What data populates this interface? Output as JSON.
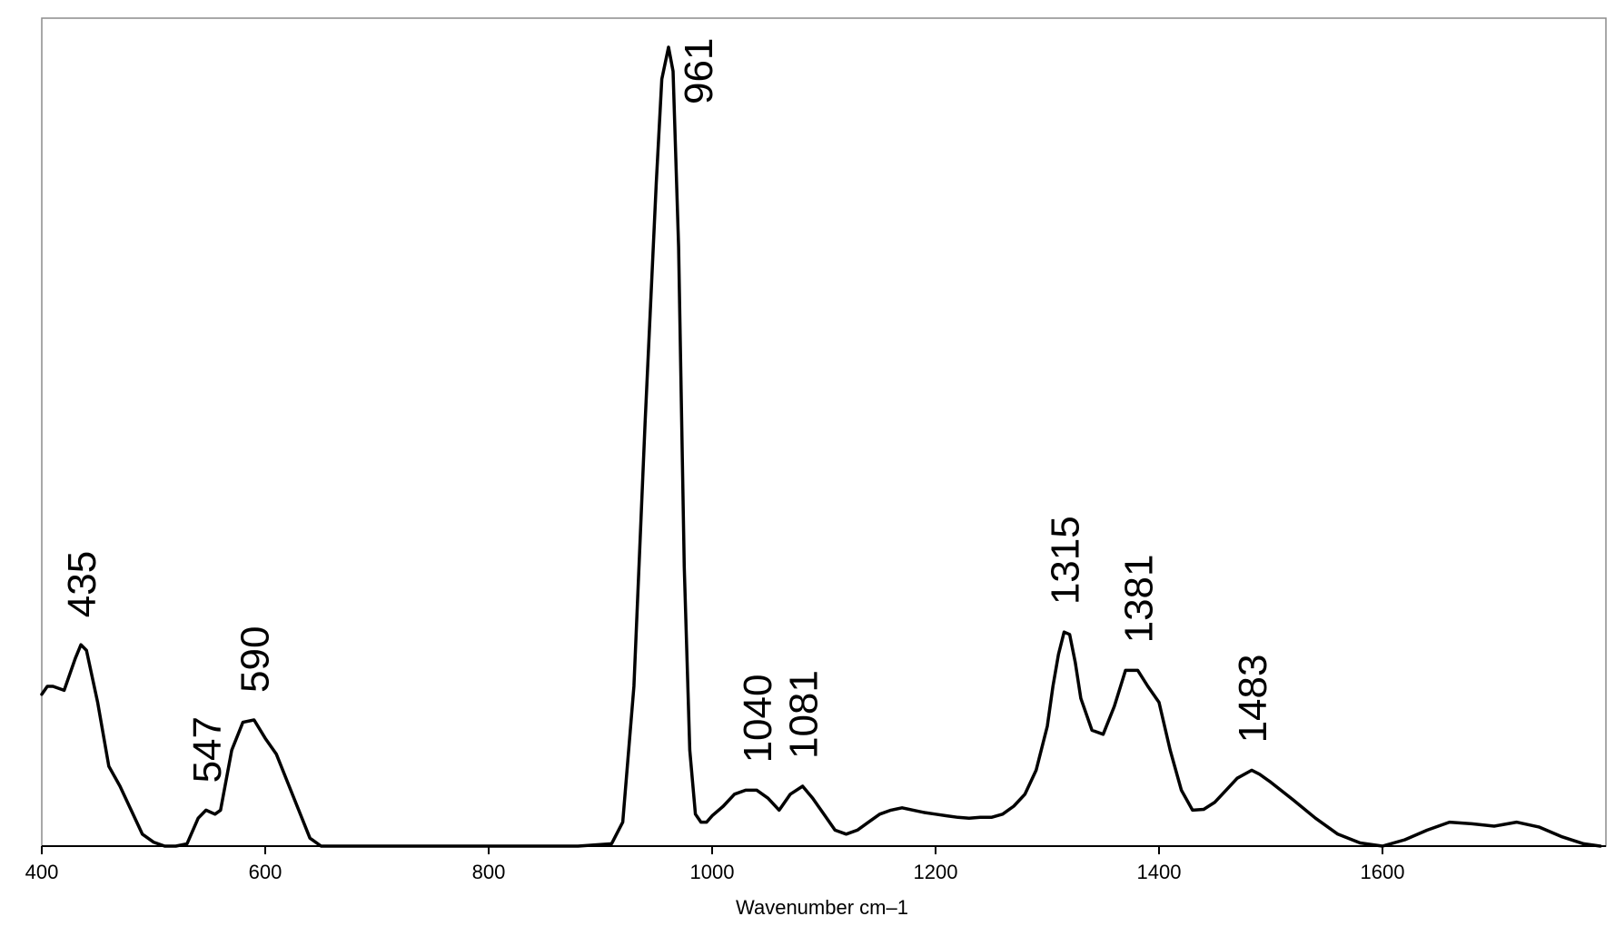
{
  "chart_data": {
    "type": "line",
    "title": "",
    "xlabel": "Wavenumber cm–1",
    "ylabel": "",
    "xlim": [
      400,
      1800
    ],
    "ylim": [
      0,
      1
    ],
    "grid": false,
    "x_ticks": [
      400,
      600,
      800,
      1000,
      1200,
      1400,
      1600
    ],
    "x_tick_labels": [
      "400",
      "600",
      "800",
      "1000",
      "1200",
      "1400",
      "1600"
    ],
    "series": [
      {
        "x": [
          400,
          405,
          410,
          420,
          430,
          435,
          440,
          450,
          460,
          470,
          480,
          490,
          500,
          510,
          520,
          530,
          540,
          547,
          555,
          560,
          570,
          580,
          590,
          600,
          610,
          620,
          630,
          640,
          650,
          660,
          700,
          800,
          880,
          910,
          920,
          930,
          940,
          950,
          955,
          961,
          965,
          970,
          975,
          980,
          985,
          990,
          995,
          1000,
          1010,
          1020,
          1030,
          1040,
          1050,
          1060,
          1070,
          1081,
          1090,
          1100,
          1110,
          1120,
          1130,
          1140,
          1150,
          1160,
          1170,
          1180,
          1190,
          1200,
          1210,
          1220,
          1230,
          1240,
          1250,
          1260,
          1270,
          1280,
          1290,
          1300,
          1305,
          1310,
          1315,
          1320,
          1325,
          1330,
          1340,
          1350,
          1360,
          1370,
          1381,
          1390,
          1400,
          1410,
          1420,
          1430,
          1440,
          1450,
          1460,
          1470,
          1483,
          1490,
          1500,
          1520,
          1540,
          1560,
          1580,
          1600,
          1620,
          1640,
          1660,
          1680,
          1700,
          1720,
          1740,
          1760,
          1780,
          1795
        ],
        "y": [
          0.19,
          0.2,
          0.2,
          0.195,
          0.235,
          0.252,
          0.245,
          0.18,
          0.1,
          0.075,
          0.045,
          0.015,
          0.005,
          0.0,
          0.0,
          0.003,
          0.035,
          0.045,
          0.04,
          0.045,
          0.12,
          0.155,
          0.158,
          0.135,
          0.115,
          0.08,
          0.045,
          0.01,
          0.0,
          0.0,
          0.0,
          0.0,
          0.0,
          0.003,
          0.03,
          0.2,
          0.53,
          0.83,
          0.96,
          1.0,
          0.97,
          0.75,
          0.35,
          0.12,
          0.04,
          0.03,
          0.03,
          0.038,
          0.05,
          0.065,
          0.07,
          0.07,
          0.06,
          0.045,
          0.065,
          0.075,
          0.06,
          0.04,
          0.02,
          0.015,
          0.02,
          0.03,
          0.04,
          0.045,
          0.048,
          0.045,
          0.042,
          0.04,
          0.038,
          0.036,
          0.035,
          0.036,
          0.036,
          0.04,
          0.05,
          0.065,
          0.095,
          0.15,
          0.2,
          0.24,
          0.268,
          0.265,
          0.23,
          0.185,
          0.145,
          0.14,
          0.175,
          0.22,
          0.22,
          0.2,
          0.18,
          0.12,
          0.07,
          0.045,
          0.046,
          0.055,
          0.07,
          0.085,
          0.095,
          0.09,
          0.08,
          0.058,
          0.035,
          0.015,
          0.004,
          0.0,
          0.008,
          0.02,
          0.03,
          0.028,
          0.025,
          0.03,
          0.024,
          0.012,
          0.003,
          0.0
        ]
      }
    ],
    "annotations": [
      {
        "x": 435,
        "text": "435"
      },
      {
        "x": 547,
        "text": "547"
      },
      {
        "x": 590,
        "text": "590"
      },
      {
        "x": 961,
        "text": "961"
      },
      {
        "x": 1040,
        "text": "1040"
      },
      {
        "x": 1081,
        "text": "1081"
      },
      {
        "x": 1315,
        "text": "1315"
      },
      {
        "x": 1381,
        "text": "1381"
      },
      {
        "x": 1483,
        "text": "1483"
      }
    ]
  }
}
